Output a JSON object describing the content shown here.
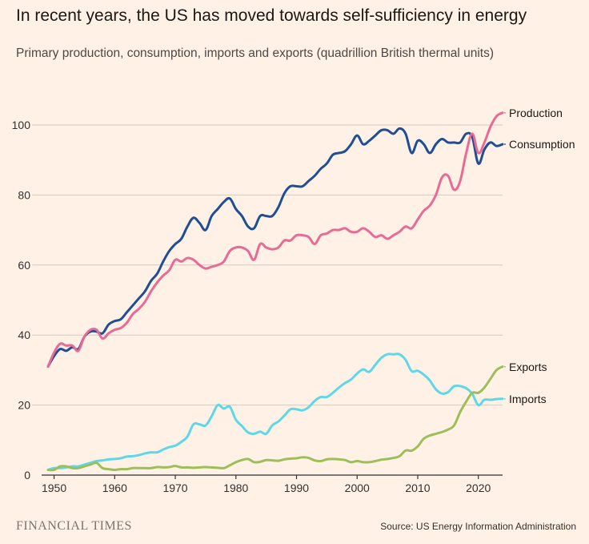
{
  "header": {
    "title": "In recent years, the US has moved towards self-sufficiency in energy",
    "subtitle": "Primary production, consumption, imports and exports (quadrillion British thermal units)"
  },
  "footer": {
    "brand": "FINANCIAL TIMES",
    "source": "Source: US Energy Information Administration"
  },
  "chart_data": {
    "type": "line",
    "title": "In recent years, the US has moved towards self-sufficiency in energy",
    "xlabel": "",
    "ylabel": "quadrillion British thermal units",
    "xlim": [
      1949,
      2024
    ],
    "ylim": [
      0,
      110
    ],
    "grid": true,
    "xticks": [
      1950,
      1960,
      1970,
      1980,
      1990,
      2000,
      2010,
      2020
    ],
    "xtick_labels": [
      "1950",
      "1960",
      "1970",
      "1980",
      "1990",
      "2000",
      "2010",
      "2020"
    ],
    "yticks": [
      0,
      20,
      40,
      60,
      80,
      100
    ],
    "ytick_labels": [
      "0",
      "20",
      "40",
      "60",
      "80",
      "100"
    ],
    "series": [
      {
        "name": "Consumption",
        "label": "Consumption",
        "color": "#1F4E96",
        "points": [
          [
            1949,
            31
          ],
          [
            1950,
            34
          ],
          [
            1951,
            36
          ],
          [
            1952,
            35.5
          ],
          [
            1953,
            36.5
          ],
          [
            1954,
            36
          ],
          [
            1955,
            39.5
          ],
          [
            1956,
            41
          ],
          [
            1957,
            41
          ],
          [
            1958,
            40.5
          ],
          [
            1959,
            43
          ],
          [
            1960,
            44
          ],
          [
            1961,
            44.5
          ],
          [
            1962,
            46.5
          ],
          [
            1963,
            48.5
          ],
          [
            1964,
            50.5
          ],
          [
            1965,
            52.5
          ],
          [
            1966,
            55.5
          ],
          [
            1967,
            57.5
          ],
          [
            1968,
            61
          ],
          [
            1969,
            64
          ],
          [
            1970,
            66
          ],
          [
            1971,
            67.5
          ],
          [
            1972,
            71
          ],
          [
            1973,
            73.5
          ],
          [
            1974,
            72
          ],
          [
            1975,
            70
          ],
          [
            1976,
            74
          ],
          [
            1977,
            76
          ],
          [
            1978,
            78
          ],
          [
            1979,
            79
          ],
          [
            1980,
            76
          ],
          [
            1981,
            74
          ],
          [
            1982,
            71
          ],
          [
            1983,
            70.5
          ],
          [
            1984,
            74
          ],
          [
            1985,
            74
          ],
          [
            1986,
            74
          ],
          [
            1987,
            76.5
          ],
          [
            1988,
            80.5
          ],
          [
            1989,
            82.5
          ],
          [
            1990,
            82.5
          ],
          [
            1991,
            82.5
          ],
          [
            1992,
            84
          ],
          [
            1993,
            85.5
          ],
          [
            1994,
            87.5
          ],
          [
            1995,
            89
          ],
          [
            1996,
            91.5
          ],
          [
            1997,
            92
          ],
          [
            1998,
            92.5
          ],
          [
            1999,
            94.5
          ],
          [
            2000,
            97
          ],
          [
            2001,
            94.5
          ],
          [
            2002,
            95.5
          ],
          [
            2003,
            97
          ],
          [
            2004,
            98.5
          ],
          [
            2005,
            98.5
          ],
          [
            2006,
            97.5
          ],
          [
            2007,
            99
          ],
          [
            2008,
            97.5
          ],
          [
            2009,
            92
          ],
          [
            2010,
            95.5
          ],
          [
            2011,
            94.5
          ],
          [
            2012,
            92
          ],
          [
            2013,
            94.5
          ],
          [
            2014,
            96
          ],
          [
            2015,
            95
          ],
          [
            2016,
            95
          ],
          [
            2017,
            95
          ],
          [
            2018,
            97.5
          ],
          [
            2019,
            96.5
          ],
          [
            2020,
            89
          ],
          [
            2021,
            93
          ],
          [
            2022,
            95
          ],
          [
            2023,
            94
          ],
          [
            2024,
            94.5
          ]
        ]
      },
      {
        "name": "Production",
        "label": "Production",
        "color": "#E86B95",
        "points": [
          [
            1949,
            31
          ],
          [
            1950,
            35
          ],
          [
            1951,
            37.5
          ],
          [
            1952,
            37
          ],
          [
            1953,
            37
          ],
          [
            1954,
            35.5
          ],
          [
            1955,
            39.5
          ],
          [
            1956,
            41.5
          ],
          [
            1957,
            41.5
          ],
          [
            1958,
            39
          ],
          [
            1959,
            40.5
          ],
          [
            1960,
            41.5
          ],
          [
            1961,
            42
          ],
          [
            1962,
            43.5
          ],
          [
            1963,
            46
          ],
          [
            1964,
            47.5
          ],
          [
            1965,
            49.5
          ],
          [
            1966,
            52.5
          ],
          [
            1967,
            55
          ],
          [
            1968,
            57
          ],
          [
            1969,
            58.5
          ],
          [
            1970,
            61.5
          ],
          [
            1971,
            61
          ],
          [
            1972,
            62
          ],
          [
            1973,
            61.5
          ],
          [
            1974,
            60
          ],
          [
            1975,
            59
          ],
          [
            1976,
            59.5
          ],
          [
            1977,
            60
          ],
          [
            1978,
            61
          ],
          [
            1979,
            64
          ],
          [
            1980,
            65
          ],
          [
            1981,
            65
          ],
          [
            1982,
            64
          ],
          [
            1983,
            61.5
          ],
          [
            1984,
            66
          ],
          [
            1985,
            65
          ],
          [
            1986,
            64.5
          ],
          [
            1987,
            65
          ],
          [
            1988,
            67
          ],
          [
            1989,
            67
          ],
          [
            1990,
            68.5
          ],
          [
            1991,
            68.5
          ],
          [
            1992,
            68
          ],
          [
            1993,
            66
          ],
          [
            1994,
            68.5
          ],
          [
            1995,
            69
          ],
          [
            1996,
            70
          ],
          [
            1997,
            70
          ],
          [
            1998,
            70.5
          ],
          [
            1999,
            69.5
          ],
          [
            2000,
            69.5
          ],
          [
            2001,
            70.5
          ],
          [
            2002,
            69.5
          ],
          [
            2003,
            68
          ],
          [
            2004,
            68.5
          ],
          [
            2005,
            67.5
          ],
          [
            2006,
            68.5
          ],
          [
            2007,
            69.5
          ],
          [
            2008,
            71
          ],
          [
            2009,
            70.5
          ],
          [
            2010,
            73
          ],
          [
            2011,
            75.5
          ],
          [
            2012,
            77
          ],
          [
            2013,
            80
          ],
          [
            2014,
            85
          ],
          [
            2015,
            85.5
          ],
          [
            2016,
            81.5
          ],
          [
            2017,
            84
          ],
          [
            2018,
            92
          ],
          [
            2019,
            97.5
          ],
          [
            2020,
            92
          ],
          [
            2021,
            95
          ],
          [
            2022,
            99.5
          ],
          [
            2023,
            102.5
          ],
          [
            2024,
            103.5
          ]
        ]
      },
      {
        "name": "Exports",
        "label": "Exports",
        "color": "#9DBF5A",
        "points": [
          [
            1949,
            1.5
          ],
          [
            1950,
            1.5
          ],
          [
            1951,
            2.5
          ],
          [
            1952,
            2.5
          ],
          [
            1953,
            2
          ],
          [
            1954,
            2
          ],
          [
            1955,
            2.5
          ],
          [
            1956,
            3
          ],
          [
            1957,
            3.5
          ],
          [
            1958,
            2
          ],
          [
            1959,
            1.7
          ],
          [
            1960,
            1.5
          ],
          [
            1961,
            1.7
          ],
          [
            1962,
            1.7
          ],
          [
            1963,
            2
          ],
          [
            1964,
            2
          ],
          [
            1965,
            2
          ],
          [
            1966,
            2
          ],
          [
            1967,
            2.3
          ],
          [
            1968,
            2.2
          ],
          [
            1969,
            2.3
          ],
          [
            1970,
            2.6
          ],
          [
            1971,
            2.2
          ],
          [
            1972,
            2.2
          ],
          [
            1973,
            2.1
          ],
          [
            1974,
            2.2
          ],
          [
            1975,
            2.3
          ],
          [
            1976,
            2.2
          ],
          [
            1977,
            2.1
          ],
          [
            1978,
            2
          ],
          [
            1979,
            2.8
          ],
          [
            1980,
            3.7
          ],
          [
            1981,
            4.3
          ],
          [
            1982,
            4.6
          ],
          [
            1983,
            3.7
          ],
          [
            1984,
            3.8
          ],
          [
            1985,
            4.3
          ],
          [
            1986,
            4.2
          ],
          [
            1987,
            4.1
          ],
          [
            1988,
            4.5
          ],
          [
            1989,
            4.7
          ],
          [
            1990,
            4.8
          ],
          [
            1991,
            5.1
          ],
          [
            1992,
            4.9
          ],
          [
            1993,
            4.2
          ],
          [
            1994,
            4
          ],
          [
            1995,
            4.5
          ],
          [
            1996,
            4.6
          ],
          [
            1997,
            4.5
          ],
          [
            1998,
            4.3
          ],
          [
            1999,
            3.7
          ],
          [
            2000,
            4
          ],
          [
            2001,
            3.7
          ],
          [
            2002,
            3.7
          ],
          [
            2003,
            4
          ],
          [
            2004,
            4.4
          ],
          [
            2005,
            4.6
          ],
          [
            2006,
            4.9
          ],
          [
            2007,
            5.4
          ],
          [
            2008,
            7
          ],
          [
            2009,
            7
          ],
          [
            2010,
            8.2
          ],
          [
            2011,
            10.4
          ],
          [
            2012,
            11.3
          ],
          [
            2013,
            11.8
          ],
          [
            2014,
            12.3
          ],
          [
            2015,
            13
          ],
          [
            2016,
            14.2
          ],
          [
            2017,
            18
          ],
          [
            2018,
            21
          ],
          [
            2019,
            23.5
          ],
          [
            2020,
            23.5
          ],
          [
            2021,
            25
          ],
          [
            2022,
            27.5
          ],
          [
            2023,
            30
          ],
          [
            2024,
            31
          ]
        ]
      },
      {
        "name": "Imports",
        "label": "Imports",
        "color": "#5ED8E8",
        "points": [
          [
            1949,
            1.5
          ],
          [
            1950,
            2
          ],
          [
            1951,
            2
          ],
          [
            1952,
            2.2
          ],
          [
            1953,
            2.5
          ],
          [
            1954,
            2.5
          ],
          [
            1955,
            3
          ],
          [
            1956,
            3.5
          ],
          [
            1957,
            4
          ],
          [
            1958,
            4.2
          ],
          [
            1959,
            4.5
          ],
          [
            1960,
            4.6
          ],
          [
            1961,
            4.8
          ],
          [
            1962,
            5.3
          ],
          [
            1963,
            5.4
          ],
          [
            1964,
            5.7
          ],
          [
            1965,
            6.2
          ],
          [
            1966,
            6.5
          ],
          [
            1967,
            6.5
          ],
          [
            1968,
            7.3
          ],
          [
            1969,
            8
          ],
          [
            1970,
            8.4
          ],
          [
            1971,
            9.5
          ],
          [
            1972,
            11
          ],
          [
            1973,
            14.5
          ],
          [
            1974,
            14.5
          ],
          [
            1975,
            14.2
          ],
          [
            1976,
            16.8
          ],
          [
            1977,
            20
          ],
          [
            1978,
            19
          ],
          [
            1979,
            19.5
          ],
          [
            1980,
            15.8
          ],
          [
            1981,
            14
          ],
          [
            1982,
            12.2
          ],
          [
            1983,
            11.8
          ],
          [
            1984,
            12.4
          ],
          [
            1985,
            11.8
          ],
          [
            1986,
            14.2
          ],
          [
            1987,
            15.3
          ],
          [
            1988,
            17
          ],
          [
            1989,
            18.8
          ],
          [
            1990,
            18.8
          ],
          [
            1991,
            18.5
          ],
          [
            1992,
            19.4
          ],
          [
            1993,
            21.2
          ],
          [
            1994,
            22.3
          ],
          [
            1995,
            22.3
          ],
          [
            1996,
            23.5
          ],
          [
            1997,
            25
          ],
          [
            1998,
            26.3
          ],
          [
            1999,
            27.3
          ],
          [
            2000,
            29
          ],
          [
            2001,
            30.2
          ],
          [
            2002,
            29.5
          ],
          [
            2003,
            31.5
          ],
          [
            2004,
            33.5
          ],
          [
            2005,
            34.5
          ],
          [
            2006,
            34.5
          ],
          [
            2007,
            34.5
          ],
          [
            2008,
            32.9
          ],
          [
            2009,
            29.7
          ],
          [
            2010,
            29.8
          ],
          [
            2011,
            28.7
          ],
          [
            2012,
            27
          ],
          [
            2013,
            24.5
          ],
          [
            2014,
            23.3
          ],
          [
            2015,
            23.7
          ],
          [
            2016,
            25.4
          ],
          [
            2017,
            25.4
          ],
          [
            2018,
            24.8
          ],
          [
            2019,
            23.2
          ],
          [
            2020,
            20
          ],
          [
            2021,
            21.5
          ],
          [
            2022,
            21.5
          ],
          [
            2023,
            21.7
          ],
          [
            2024,
            21.8
          ]
        ]
      }
    ]
  }
}
